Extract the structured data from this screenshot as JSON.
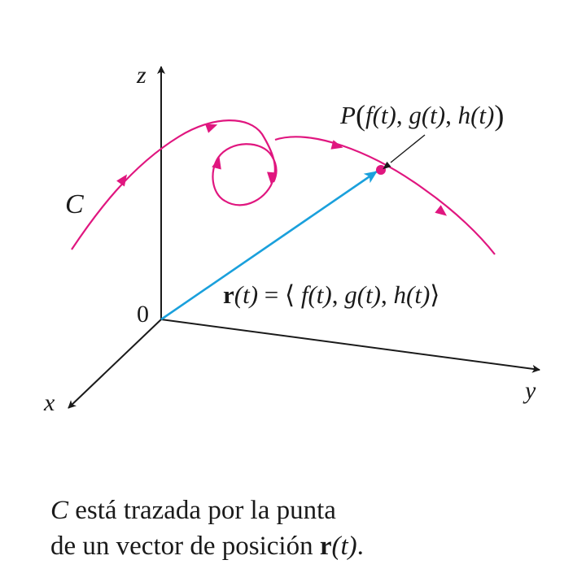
{
  "diagram": {
    "axes": {
      "x_label": "x",
      "y_label": "y",
      "z_label": "z",
      "origin_label": "0"
    },
    "curve_label": "C",
    "point_label": {
      "prefix": "P",
      "open_paren": "(",
      "f": "f",
      "t1": "(t)",
      "sep1": ", ",
      "g": "g",
      "t2": "(t)",
      "sep2": ", ",
      "h": "h",
      "t3": "(t)",
      "close_paren": ")"
    },
    "vector_label": {
      "r": "r",
      "rt": "(t)",
      "equals": " = ⟨ ",
      "f": "f",
      "t1": "(t)",
      "sep1": ", ",
      "g": "g",
      "t2": "(t)",
      "sep2": ", ",
      "h": "h",
      "t3": "(t)",
      "close": "⟩"
    },
    "colors": {
      "curve": "#e0167f",
      "vector": "#1aa0dc",
      "axes": "#1a1a1a"
    }
  },
  "caption": {
    "line1_c": "C",
    "line1_rest": " está trazada por la punta",
    "line2_text": "de un vector de posición ",
    "line2_r": "r",
    "line2_t": "(t)",
    "line2_end": "."
  }
}
